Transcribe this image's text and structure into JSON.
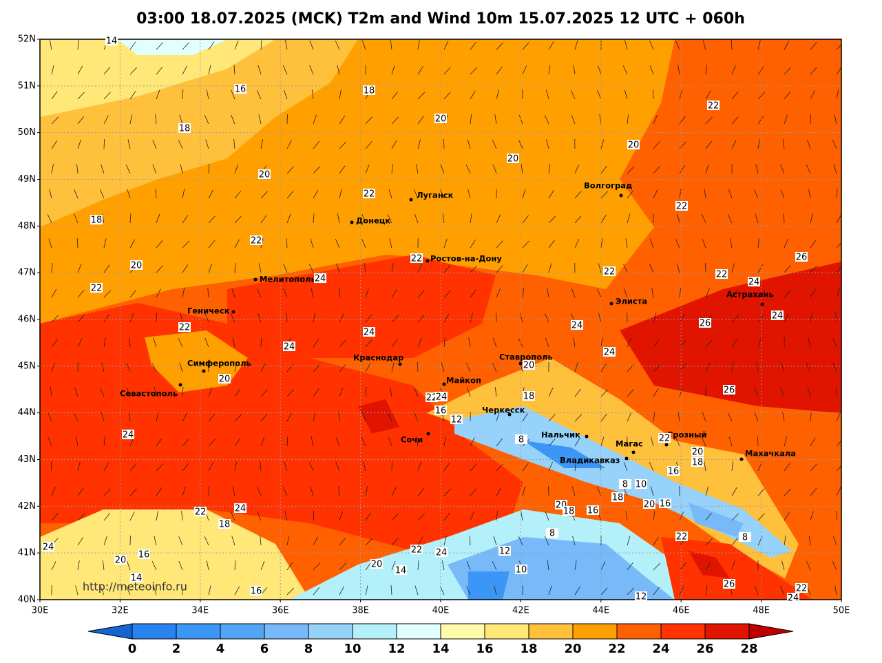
{
  "header": {
    "title": "03:00 18.07.2025 (MCK) T2m and Wind 10m 15.07.2025 12 UTC + 060h"
  },
  "map": {
    "lat_labels": [
      "52N",
      "51N",
      "50N",
      "49N",
      "48N",
      "47N",
      "46N",
      "45N",
      "44N",
      "43N",
      "42N",
      "41N",
      "40N"
    ],
    "lon_labels": [
      "30E",
      "32E",
      "34E",
      "36E",
      "38E",
      "40E",
      "42E",
      "44E",
      "46E",
      "48E",
      "50E"
    ],
    "cities": [
      "Волгоград",
      "Луганск",
      "Донецк",
      "Ростов-на-Дону",
      "Мелитополь",
      "Геническ",
      "Элиста",
      "Астрахань",
      "Симферополь",
      "Севастополь",
      "Краснодар",
      "Ставрополь",
      "Майкоп",
      "Черкесск",
      "Сочи",
      "Нальчик",
      "Магас",
      "Грозный",
      "Владикавказ",
      "Махачкала"
    ],
    "watermark": "http://meteoinfo.ru",
    "contour_labels": [
      14,
      16,
      18,
      18,
      20,
      20,
      20,
      20,
      22,
      22,
      22,
      18,
      22,
      22,
      20,
      22,
      22,
      24,
      26,
      22,
      24,
      24,
      26,
      24,
      22,
      24,
      24,
      24,
      20,
      20,
      26,
      22,
      24,
      18,
      16,
      12,
      24,
      8,
      22,
      20,
      18,
      16,
      10,
      8,
      18,
      20,
      18,
      16,
      20,
      16,
      22,
      24,
      18,
      8,
      22,
      8,
      24,
      22,
      24,
      12,
      16,
      20,
      20,
      14,
      10,
      14,
      26,
      16,
      12,
      22,
      24
    ]
  },
  "colorbar": {
    "ticks": [
      0,
      2,
      4,
      6,
      8,
      10,
      12,
      14,
      16,
      18,
      20,
      22,
      24,
      26,
      28
    ],
    "colors": [
      "#1464d2",
      "#2882f0",
      "#3c96f5",
      "#50a5f5",
      "#78b9fa",
      "#96d2fa",
      "#b4f0fa",
      "#e1ffff",
      "#fffaaa",
      "#ffe878",
      "#ffc03c",
      "#ffa000",
      "#ff6000",
      "#ff3200",
      "#e11400",
      "#c00000"
    ]
  }
}
